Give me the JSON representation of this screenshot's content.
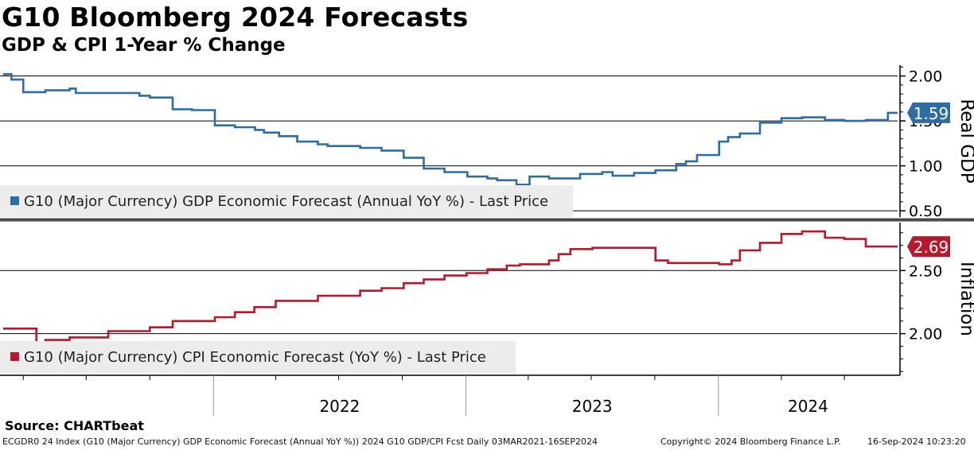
{
  "header": {
    "title": "G10 Bloomberg 2024 Forecasts",
    "subtitle": "GDP & CPI 1-Year % Change"
  },
  "chart_data": [
    {
      "type": "line",
      "panel": "top",
      "axis_side_label": "Real GDP",
      "yticks": [
        "2.00",
        "1.50",
        "1.00",
        "0.50"
      ],
      "ylim": [
        0.43,
        2.12
      ],
      "legend_label": "G10 (Major Currency) GDP Economic Forecast (Annual YoY %) - Last Price",
      "last_value_label": "1.59",
      "last_value": 1.59,
      "color": "#2e6da4",
      "x_start": "2021-03-03",
      "x_end": "2024-09-16",
      "x": [
        "2021-03-03",
        "2021-03-15",
        "2021-04-01",
        "2021-05-03",
        "2021-06-07",
        "2021-06-16",
        "2021-08-02",
        "2021-09-16",
        "2021-10-01",
        "2021-11-03",
        "2021-12-01",
        "2022-01-03",
        "2022-02-01",
        "2022-03-02",
        "2022-03-15",
        "2022-04-06",
        "2022-05-02",
        "2022-06-01",
        "2022-06-15",
        "2022-08-01",
        "2022-09-01",
        "2022-10-03",
        "2022-11-01",
        "2022-12-01",
        "2023-01-03",
        "2023-02-01",
        "2023-02-15",
        "2023-03-15",
        "2023-04-03",
        "2023-05-01",
        "2023-06-01",
        "2023-06-15",
        "2023-07-17",
        "2023-08-01",
        "2023-09-01",
        "2023-10-02",
        "2023-11-01",
        "2023-11-15",
        "2023-12-01",
        "2024-01-02",
        "2024-01-15",
        "2024-02-01",
        "2024-03-01",
        "2024-04-01",
        "2024-05-01",
        "2024-06-03",
        "2024-07-01",
        "2024-08-01",
        "2024-09-02",
        "2024-09-16"
      ],
      "values": [
        2.02,
        1.96,
        1.82,
        1.84,
        1.86,
        1.81,
        1.81,
        1.78,
        1.76,
        1.63,
        1.62,
        1.45,
        1.43,
        1.4,
        1.37,
        1.33,
        1.27,
        1.24,
        1.22,
        1.2,
        1.17,
        1.09,
        0.97,
        0.93,
        0.88,
        0.86,
        0.84,
        0.79,
        0.88,
        0.86,
        0.86,
        0.91,
        0.93,
        0.89,
        0.92,
        0.95,
        1.02,
        1.05,
        1.12,
        1.27,
        1.32,
        1.36,
        1.48,
        1.53,
        1.54,
        1.51,
        1.5,
        1.51,
        1.59,
        1.59
      ]
    },
    {
      "type": "line",
      "panel": "bottom",
      "axis_side_label": "Inflation",
      "yticks": [
        "2.50",
        "2.00"
      ],
      "ylim": [
        1.67,
        2.88
      ],
      "legend_label": "G10 (Major Currency) CPI Economic Forecast (YoY %) - Last Price",
      "last_value_label": "2.69",
      "last_value": 2.69,
      "color": "#b8182c",
      "x_start": "2021-03-03",
      "x_end": "2024-09-16",
      "x": [
        "2021-03-03",
        "2021-04-20",
        "2021-05-03",
        "2021-06-07",
        "2021-08-02",
        "2021-10-01",
        "2021-11-03",
        "2022-01-03",
        "2022-02-01",
        "2022-03-01",
        "2022-04-01",
        "2022-06-01",
        "2022-08-01",
        "2022-09-01",
        "2022-10-03",
        "2022-11-01",
        "2022-12-01",
        "2023-01-02",
        "2023-02-01",
        "2023-03-01",
        "2023-03-20",
        "2023-05-01",
        "2023-05-15",
        "2023-06-01",
        "2023-07-03",
        "2023-08-01",
        "2023-09-01",
        "2023-10-02",
        "2023-10-20",
        "2023-12-01",
        "2024-01-02",
        "2024-01-20",
        "2024-02-01",
        "2024-03-01",
        "2024-04-01",
        "2024-05-01",
        "2024-06-03",
        "2024-07-01",
        "2024-08-01",
        "2024-09-02",
        "2024-09-16"
      ],
      "values": [
        2.04,
        1.92,
        1.95,
        1.97,
        2.02,
        2.05,
        2.1,
        2.13,
        2.17,
        2.21,
        2.26,
        2.3,
        2.34,
        2.36,
        2.4,
        2.43,
        2.46,
        2.48,
        2.51,
        2.54,
        2.55,
        2.58,
        2.63,
        2.67,
        2.68,
        2.68,
        2.68,
        2.58,
        2.56,
        2.56,
        2.55,
        2.58,
        2.66,
        2.72,
        2.79,
        2.81,
        2.76,
        2.75,
        2.69,
        2.69,
        2.69
      ]
    }
  ],
  "x_axis": {
    "year_labels": [
      "2022",
      "2023",
      "2024"
    ]
  },
  "footer": {
    "source": "Source: CHARTbeat",
    "ticker_info": "ECGDR0 24 Index (G10 (Major Currency) GDP Economic Forecast (Annual YoY %)) 2024 G10 GDP/CPI Fcst  Daily 03MAR2021-16SEP2024",
    "copyright": "Copyright© 2024 Bloomberg Finance L.P.",
    "timestamp": "16-Sep-2024 10:23:20"
  },
  "colors": {
    "gdp": "#2e6da4",
    "cpi": "#b8182c",
    "separator": "#4a4a4a",
    "legend_bg": "#ececec"
  }
}
